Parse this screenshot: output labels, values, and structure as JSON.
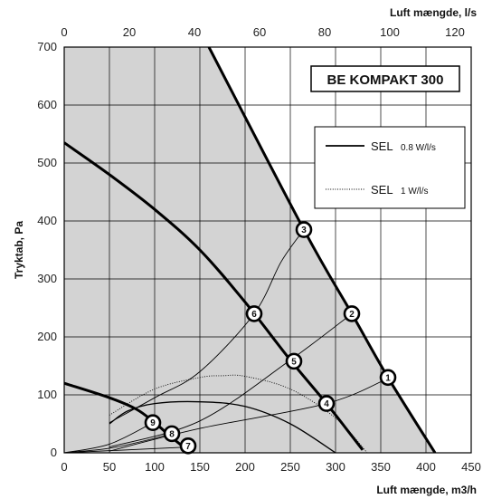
{
  "chart_data": {
    "type": "line",
    "title": "BE KOMPAKT 300",
    "xlabel": "Luft mængde, m3/h",
    "ylabel": "Tryktab, Pa",
    "x2label": "Luft mængde, l/s",
    "xlim": [
      0,
      450
    ],
    "ylim": [
      0,
      700
    ],
    "x2lim": [
      0,
      125
    ],
    "x_ticks": [
      "0",
      "50",
      "100",
      "150",
      "200",
      "250",
      "300",
      "350",
      "400",
      "450"
    ],
    "y_ticks": [
      "0",
      "100",
      "200",
      "300",
      "400",
      "500",
      "600",
      "700"
    ],
    "x2_ticks": [
      "0",
      "20",
      "40",
      "60",
      "80",
      "100",
      "120"
    ],
    "grid": true,
    "legend": [
      {
        "label": "SEL",
        "unit": "0.8 W/l/s",
        "style": "solid"
      },
      {
        "label": "SEL",
        "unit": "1 W/l/s",
        "style": "dotted"
      }
    ],
    "fan_curves": [
      {
        "points": [
          [
            0,
            120
          ],
          [
            50,
            95
          ],
          [
            80,
            75
          ],
          [
            100,
            52
          ],
          [
            120,
            25
          ],
          [
            140,
            0
          ]
        ]
      },
      {
        "points": [
          [
            0,
            535
          ],
          [
            50,
            480
          ],
          [
            100,
            420
          ],
          [
            150,
            350
          ],
          [
            200,
            260
          ],
          [
            250,
            160
          ],
          [
            290,
            85
          ],
          [
            330,
            5
          ]
        ]
      },
      {
        "points": [
          [
            160,
            700
          ],
          [
            265,
            385
          ],
          [
            318,
            240
          ],
          [
            358,
            130
          ],
          [
            410,
            0
          ]
        ]
      }
    ],
    "system_curves": [
      {
        "points": [
          [
            0,
            0
          ],
          [
            138,
            10
          ]
        ]
      },
      {
        "points": [
          [
            0,
            0
          ],
          [
            50,
            8
          ],
          [
            100,
            25
          ],
          [
            120,
            35
          ]
        ]
      },
      {
        "points": [
          [
            0,
            0
          ],
          [
            50,
            15
          ],
          [
            98,
            52
          ]
        ]
      },
      {
        "points": [
          [
            50,
            3
          ],
          [
            150,
            42
          ],
          [
            290,
            85
          ],
          [
            360,
            130
          ]
        ]
      },
      {
        "points": [
          [
            50,
            10
          ],
          [
            150,
            55
          ],
          [
            250,
            160
          ],
          [
            318,
            240
          ]
        ]
      },
      {
        "points": [
          [
            50,
            52
          ],
          [
            100,
            95
          ],
          [
            150,
            140
          ],
          [
            210,
            240
          ],
          [
            240,
            330
          ],
          [
            265,
            385
          ]
        ]
      }
    ],
    "sel_curves": [
      {
        "style": "solid",
        "points": [
          [
            50,
            50
          ],
          [
            70,
            72
          ],
          [
            100,
            85
          ],
          [
            150,
            88
          ],
          [
            200,
            80
          ],
          [
            250,
            50
          ],
          [
            300,
            0
          ]
        ]
      },
      {
        "style": "dotted",
        "points": [
          [
            50,
            65
          ],
          [
            100,
            110
          ],
          [
            150,
            130
          ],
          [
            175,
            133
          ],
          [
            200,
            132
          ],
          [
            250,
            110
          ],
          [
            300,
            60
          ],
          [
            335,
            0
          ]
        ]
      }
    ],
    "operating_points": [
      {
        "label": "1",
        "x": 358,
        "y": 130
      },
      {
        "label": "2",
        "x": 318,
        "y": 240
      },
      {
        "label": "3",
        "x": 265,
        "y": 385
      },
      {
        "label": "4",
        "x": 290,
        "y": 85
      },
      {
        "label": "5",
        "x": 254,
        "y": 158
      },
      {
        "label": "6",
        "x": 210,
        "y": 240
      },
      {
        "label": "7",
        "x": 137,
        "y": 12
      },
      {
        "label": "8",
        "x": 119,
        "y": 33
      },
      {
        "label": "9",
        "x": 98,
        "y": 52
      }
    ],
    "colors": {
      "working_area": "#d3d3d3",
      "grid": "#000000",
      "curves": "#000000"
    }
  }
}
